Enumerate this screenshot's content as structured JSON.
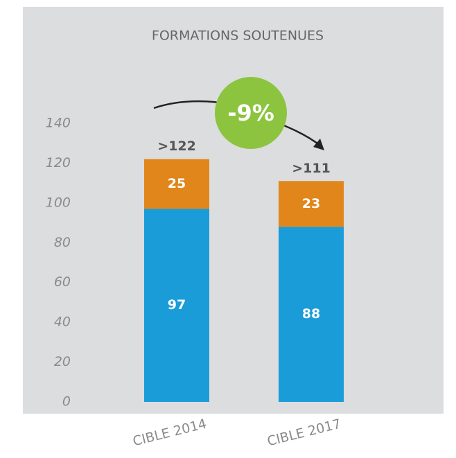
{
  "chart_data": {
    "type": "stacked_bar",
    "title": "FORMATIONS SOUTENUES",
    "categories": [
      "CIBLE 2014",
      "CIBLE 2017"
    ],
    "series": [
      {
        "color": "#1a9cd8",
        "values": [
          97,
          88
        ]
      },
      {
        "color": "#e0861a",
        "values": [
          25,
          23
        ]
      }
    ],
    "total_labels": [
      ">122",
      ">111"
    ],
    "annotation": "-9%",
    "annotation_color": "#8cc43f",
    "ylim": [
      0,
      140
    ],
    "yticks": [
      0,
      20,
      40,
      60,
      80,
      100,
      120,
      140
    ]
  }
}
